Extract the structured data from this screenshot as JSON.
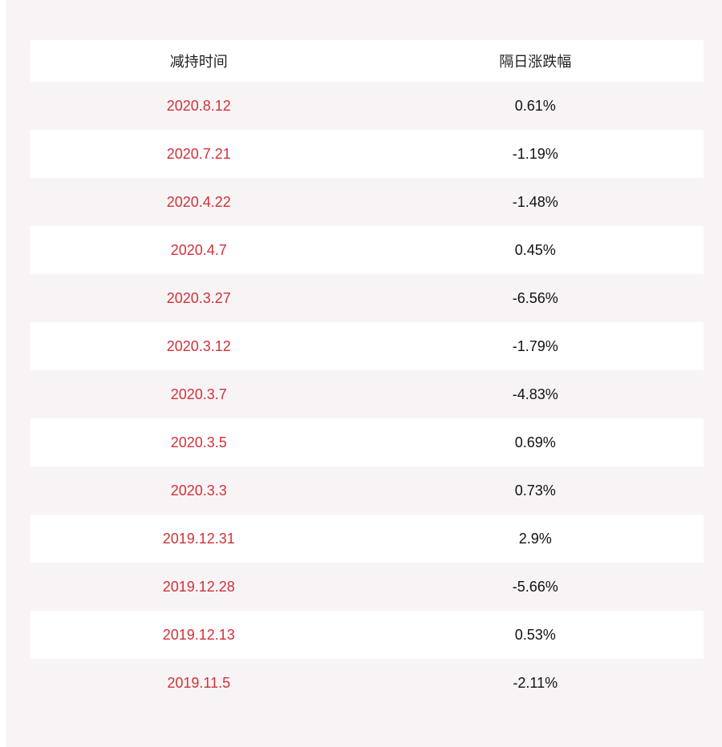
{
  "table": {
    "header": [
      "减持时间",
      "隔日涨跌幅"
    ],
    "rows": [
      [
        "2020.8.12",
        "0.61%"
      ],
      [
        "2020.7.21",
        "-1.19%"
      ],
      [
        "2020.4.22",
        "-1.48%"
      ],
      [
        "2020.4.7",
        "0.45%"
      ],
      [
        "2020.3.27",
        "-6.56%"
      ],
      [
        "2020.3.12",
        "-1.79%"
      ],
      [
        "2020.3.7",
        "-4.83%"
      ],
      [
        "2020.3.5",
        "0.69%"
      ],
      [
        "2020.3.3",
        "0.73%"
      ],
      [
        "2019.12.31",
        "2.9%"
      ],
      [
        "2019.12.28",
        "-5.66%"
      ],
      [
        "2019.12.13",
        "0.53%"
      ],
      [
        "2019.11.5",
        "-2.11%"
      ]
    ]
  }
}
